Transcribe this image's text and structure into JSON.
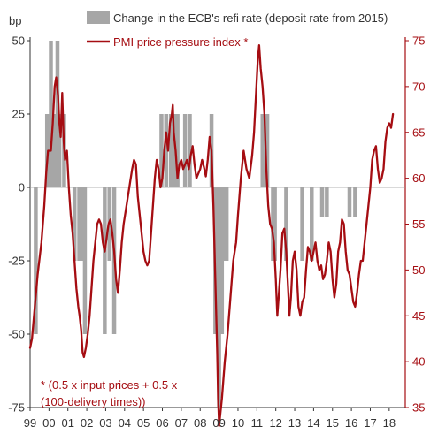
{
  "chart_data": {
    "type": "bar+line",
    "left_axis": {
      "unit": "bp",
      "ylim": [
        -75,
        50
      ],
      "ticks": [
        50,
        25,
        0,
        -25,
        -50,
        -75
      ],
      "tick_labels": [
        "50",
        "25",
        "0",
        "-25",
        "-50",
        "-75"
      ]
    },
    "right_axis": {
      "ylim": [
        35,
        75
      ],
      "ticks": [
        75,
        70,
        65,
        60,
        55,
        50,
        45,
        40,
        35
      ],
      "tick_labels": [
        "75",
        "70",
        "65",
        "60",
        "55",
        "50",
        "45",
        "40",
        "35"
      ],
      "color": "#a50d12"
    },
    "x_axis": {
      "range": [
        1999,
        2018.85
      ],
      "ticks": [
        1999,
        2000,
        2001,
        2002,
        2003,
        2004,
        2005,
        2006,
        2007,
        2008,
        2009,
        2010,
        2011,
        2012,
        2013,
        2014,
        2015,
        2016,
        2017,
        2018
      ],
      "tick_labels": [
        "99",
        "00",
        "01",
        "02",
        "03",
        "04",
        "05",
        "06",
        "07",
        "08",
        "09",
        "10",
        "11",
        "12",
        "13",
        "14",
        "15",
        "16",
        "17",
        "18"
      ]
    },
    "series": [
      {
        "name": "Change in the ECB's refi rate (deposit rate from 2015)",
        "type": "bar",
        "axis": "left",
        "color": "#a6a6a6",
        "points": [
          [
            1999.3,
            -50
          ],
          [
            1999.9,
            25
          ],
          [
            2000.1,
            50
          ],
          [
            2000.2,
            25
          ],
          [
            2000.35,
            25
          ],
          [
            2000.45,
            50
          ],
          [
            2000.55,
            25
          ],
          [
            2000.8,
            25
          ],
          [
            2001.35,
            -25
          ],
          [
            2001.6,
            -25
          ],
          [
            2001.75,
            -25
          ],
          [
            2001.9,
            -50
          ],
          [
            2002.95,
            -50
          ],
          [
            2003.2,
            -25
          ],
          [
            2003.45,
            -50
          ],
          [
            2005.95,
            25
          ],
          [
            2006.2,
            25
          ],
          [
            2006.45,
            25
          ],
          [
            2006.6,
            25
          ],
          [
            2006.8,
            25
          ],
          [
            2007.2,
            25
          ],
          [
            2007.45,
            25
          ],
          [
            2008.6,
            25
          ],
          [
            2008.8,
            -50
          ],
          [
            2008.9,
            -50
          ],
          [
            2009.0,
            -75
          ],
          [
            2009.15,
            -50
          ],
          [
            2009.3,
            -25
          ],
          [
            2009.4,
            -25
          ],
          [
            2011.3,
            25
          ],
          [
            2011.55,
            25
          ],
          [
            2011.85,
            -25
          ],
          [
            2011.95,
            -25
          ],
          [
            2012.55,
            -25
          ],
          [
            2013.4,
            -25
          ],
          [
            2013.9,
            -25
          ],
          [
            2014.45,
            -10
          ],
          [
            2014.7,
            -10
          ],
          [
            2015.9,
            -10
          ],
          [
            2016.2,
            -10
          ]
        ]
      },
      {
        "name": "PMI price pressure index *",
        "type": "line",
        "axis": "right",
        "color": "#a50d12",
        "points": [
          [
            1999.0,
            41.5
          ],
          [
            1999.1,
            42.5
          ],
          [
            1999.25,
            46
          ],
          [
            1999.4,
            49.5
          ],
          [
            1999.6,
            53
          ],
          [
            1999.75,
            57
          ],
          [
            1999.85,
            60.5
          ],
          [
            1999.95,
            63
          ],
          [
            2000.1,
            63
          ],
          [
            2000.2,
            66
          ],
          [
            2000.3,
            70
          ],
          [
            2000.38,
            71
          ],
          [
            2000.48,
            69
          ],
          [
            2000.55,
            66
          ],
          [
            2000.62,
            64.5
          ],
          [
            2000.7,
            69.3
          ],
          [
            2000.78,
            64
          ],
          [
            2000.85,
            62
          ],
          [
            2000.95,
            63
          ],
          [
            2001.05,
            59
          ],
          [
            2001.15,
            56
          ],
          [
            2001.25,
            54
          ],
          [
            2001.35,
            51
          ],
          [
            2001.45,
            48
          ],
          [
            2001.55,
            46
          ],
          [
            2001.62,
            45
          ],
          [
            2001.7,
            43.5
          ],
          [
            2001.78,
            41
          ],
          [
            2001.85,
            40.5
          ],
          [
            2001.95,
            41.5
          ],
          [
            2002.05,
            43
          ],
          [
            2002.15,
            45
          ],
          [
            2002.25,
            48
          ],
          [
            2002.35,
            51
          ],
          [
            2002.45,
            53
          ],
          [
            2002.55,
            55
          ],
          [
            2002.65,
            55.5
          ],
          [
            2002.75,
            55
          ],
          [
            2002.85,
            53
          ],
          [
            2002.95,
            52
          ],
          [
            2003.05,
            53.5
          ],
          [
            2003.15,
            55
          ],
          [
            2003.25,
            55.5
          ],
          [
            2003.35,
            54
          ],
          [
            2003.45,
            52
          ],
          [
            2003.55,
            49
          ],
          [
            2003.65,
            47.5
          ],
          [
            2003.75,
            50
          ],
          [
            2003.85,
            53
          ],
          [
            2003.95,
            55
          ],
          [
            2004.1,
            57
          ],
          [
            2004.25,
            59
          ],
          [
            2004.4,
            61
          ],
          [
            2004.5,
            62
          ],
          [
            2004.6,
            61.5
          ],
          [
            2004.7,
            58
          ],
          [
            2004.8,
            56
          ],
          [
            2004.9,
            54
          ],
          [
            2005.0,
            52
          ],
          [
            2005.1,
            51
          ],
          [
            2005.2,
            50.5
          ],
          [
            2005.3,
            51
          ],
          [
            2005.4,
            54
          ],
          [
            2005.5,
            57
          ],
          [
            2005.6,
            60
          ],
          [
            2005.7,
            62
          ],
          [
            2005.8,
            61
          ],
          [
            2005.9,
            59
          ],
          [
            2006.0,
            60
          ],
          [
            2006.1,
            63
          ],
          [
            2006.2,
            65
          ],
          [
            2006.3,
            63
          ],
          [
            2006.4,
            66
          ],
          [
            2006.5,
            67
          ],
          [
            2006.55,
            68
          ],
          [
            2006.6,
            65
          ],
          [
            2006.7,
            63
          ],
          [
            2006.8,
            60
          ],
          [
            2006.9,
            61.5
          ],
          [
            2007.0,
            62
          ],
          [
            2007.1,
            61
          ],
          [
            2007.2,
            61.5
          ],
          [
            2007.3,
            62
          ],
          [
            2007.4,
            61
          ],
          [
            2007.5,
            62.5
          ],
          [
            2007.6,
            63.5
          ],
          [
            2007.7,
            61.5
          ],
          [
            2007.8,
            60
          ],
          [
            2007.9,
            60.5
          ],
          [
            2008.0,
            61
          ],
          [
            2008.1,
            62
          ],
          [
            2008.2,
            61.2
          ],
          [
            2008.3,
            60.2
          ],
          [
            2008.4,
            62
          ],
          [
            2008.5,
            64.5
          ],
          [
            2008.6,
            63
          ],
          [
            2008.7,
            57
          ],
          [
            2008.8,
            49
          ],
          [
            2008.9,
            41
          ],
          [
            2008.95,
            36
          ],
          [
            2009.0,
            33
          ],
          [
            2009.05,
            34
          ],
          [
            2009.15,
            36
          ],
          [
            2009.3,
            40
          ],
          [
            2009.45,
            43
          ],
          [
            2009.6,
            47
          ],
          [
            2009.75,
            51
          ],
          [
            2009.9,
            53
          ],
          [
            2010.0,
            56
          ],
          [
            2010.15,
            60
          ],
          [
            2010.3,
            63
          ],
          [
            2010.45,
            61
          ],
          [
            2010.6,
            60
          ],
          [
            2010.75,
            62.5
          ],
          [
            2010.85,
            65
          ],
          [
            2010.95,
            69
          ],
          [
            2011.05,
            73
          ],
          [
            2011.12,
            74.5
          ],
          [
            2011.2,
            72
          ],
          [
            2011.3,
            70
          ],
          [
            2011.4,
            67
          ],
          [
            2011.5,
            61
          ],
          [
            2011.6,
            57
          ],
          [
            2011.7,
            55
          ],
          [
            2011.8,
            54.5
          ],
          [
            2011.9,
            53
          ],
          [
            2012.0,
            49
          ],
          [
            2012.08,
            45
          ],
          [
            2012.15,
            47
          ],
          [
            2012.25,
            50
          ],
          [
            2012.35,
            54
          ],
          [
            2012.45,
            54.5
          ],
          [
            2012.55,
            52
          ],
          [
            2012.65,
            48
          ],
          [
            2012.72,
            45
          ],
          [
            2012.8,
            47
          ],
          [
            2012.9,
            51
          ],
          [
            2013.0,
            52
          ],
          [
            2013.1,
            50
          ],
          [
            2013.2,
            46
          ],
          [
            2013.3,
            45
          ],
          [
            2013.4,
            46.5
          ],
          [
            2013.5,
            47
          ],
          [
            2013.6,
            50
          ],
          [
            2013.7,
            52.5
          ],
          [
            2013.8,
            52
          ],
          [
            2013.9,
            51
          ],
          [
            2014.0,
            52
          ],
          [
            2014.1,
            53
          ],
          [
            2014.2,
            51
          ],
          [
            2014.3,
            50
          ],
          [
            2014.4,
            50.5
          ],
          [
            2014.5,
            49
          ],
          [
            2014.6,
            49.5
          ],
          [
            2014.7,
            51
          ],
          [
            2014.8,
            53
          ],
          [
            2014.9,
            52
          ],
          [
            2015.0,
            49
          ],
          [
            2015.1,
            47
          ],
          [
            2015.2,
            48.5
          ],
          [
            2015.3,
            52
          ],
          [
            2015.4,
            53
          ],
          [
            2015.5,
            55.5
          ],
          [
            2015.6,
            55
          ],
          [
            2015.7,
            52
          ],
          [
            2015.8,
            50
          ],
          [
            2015.9,
            49.5
          ],
          [
            2016.0,
            48
          ],
          [
            2016.1,
            46.5
          ],
          [
            2016.2,
            46
          ],
          [
            2016.3,
            47.5
          ],
          [
            2016.4,
            49.5
          ],
          [
            2016.5,
            51
          ],
          [
            2016.6,
            51
          ],
          [
            2016.7,
            53
          ],
          [
            2016.8,
            55
          ],
          [
            2016.9,
            57
          ],
          [
            2017.0,
            59
          ],
          [
            2017.1,
            62
          ],
          [
            2017.2,
            63
          ],
          [
            2017.3,
            63.5
          ],
          [
            2017.4,
            61
          ],
          [
            2017.5,
            59.5
          ],
          [
            2017.6,
            60
          ],
          [
            2017.7,
            61
          ],
          [
            2017.8,
            64
          ],
          [
            2017.9,
            65.5
          ],
          [
            2018.0,
            66
          ],
          [
            2018.1,
            65.5
          ],
          [
            2018.2,
            67
          ]
        ]
      }
    ],
    "legend": {
      "placement": "top",
      "entries": [
        "Change in the ECB's refi rate (deposit rate from 2015)",
        "PMI price pressure index *"
      ]
    },
    "annotations": [
      "* (0.5 x input prices + 0.5 x",
      "(100-delivery times))"
    ]
  }
}
